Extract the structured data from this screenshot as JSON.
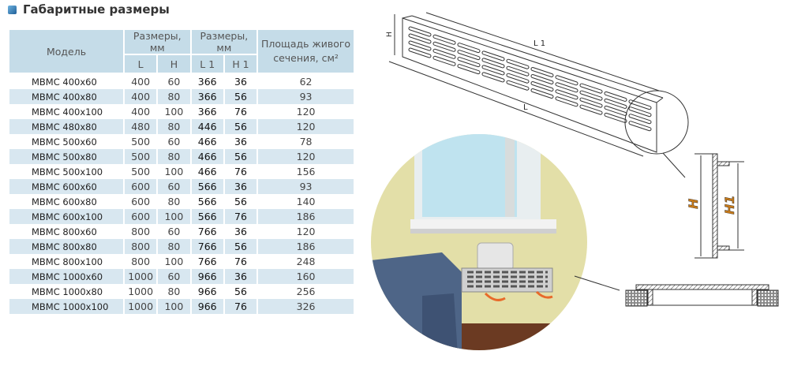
{
  "title": "Габаритные размеры",
  "table": {
    "headers": {
      "model": "Модель",
      "group1": "Размеры, мм",
      "group2": "Размеры, мм",
      "area": "Площадь живого сечения, см²",
      "L": "L",
      "H": "H",
      "L1": "L 1",
      "H1": "H 1"
    },
    "rows": [
      [
        "МВМС 400x60",
        "400",
        "60",
        "366",
        "36",
        "62"
      ],
      [
        "МВМС 400x80",
        "400",
        "80",
        "366",
        "56",
        "93"
      ],
      [
        "МВМС 400x100",
        "400",
        "100",
        "366",
        "76",
        "120"
      ],
      [
        "МВМС 480x80",
        "480",
        "80",
        "446",
        "56",
        "120"
      ],
      [
        "МВМС 500x60",
        "500",
        "60",
        "466",
        "36",
        "78"
      ],
      [
        "МВМС 500x80",
        "500",
        "80",
        "466",
        "56",
        "120"
      ],
      [
        "МВМС 500x100",
        "500",
        "100",
        "466",
        "76",
        "156"
      ],
      [
        "МВМС 600x60",
        "600",
        "60",
        "566",
        "36",
        "93"
      ],
      [
        "МВМС 600x80",
        "600",
        "80",
        "566",
        "56",
        "140"
      ],
      [
        "МВМС 600x100",
        "600",
        "100",
        "566",
        "76",
        "186"
      ],
      [
        "МВМС 800x60",
        "800",
        "60",
        "766",
        "36",
        "120"
      ],
      [
        "МВМС 800x80",
        "800",
        "80",
        "766",
        "56",
        "186"
      ],
      [
        "МВМС 800x100",
        "800",
        "100",
        "766",
        "76",
        "248"
      ],
      [
        "МВМС 1000x60",
        "1000",
        "60",
        "966",
        "36",
        "160"
      ],
      [
        "МВМС 1000x80",
        "1000",
        "80",
        "966",
        "56",
        "256"
      ],
      [
        "МВМС 1000x100",
        "1000",
        "100",
        "966",
        "76",
        "326"
      ]
    ]
  },
  "drawing": {
    "L1": "L 1",
    "L": "L",
    "H": "H",
    "sectionH": "H",
    "sectionH1": "H1"
  },
  "colors": {
    "header": "#c5dce8",
    "stripe": "#d8e7f0",
    "sectionLabel": "#c77a1a"
  }
}
